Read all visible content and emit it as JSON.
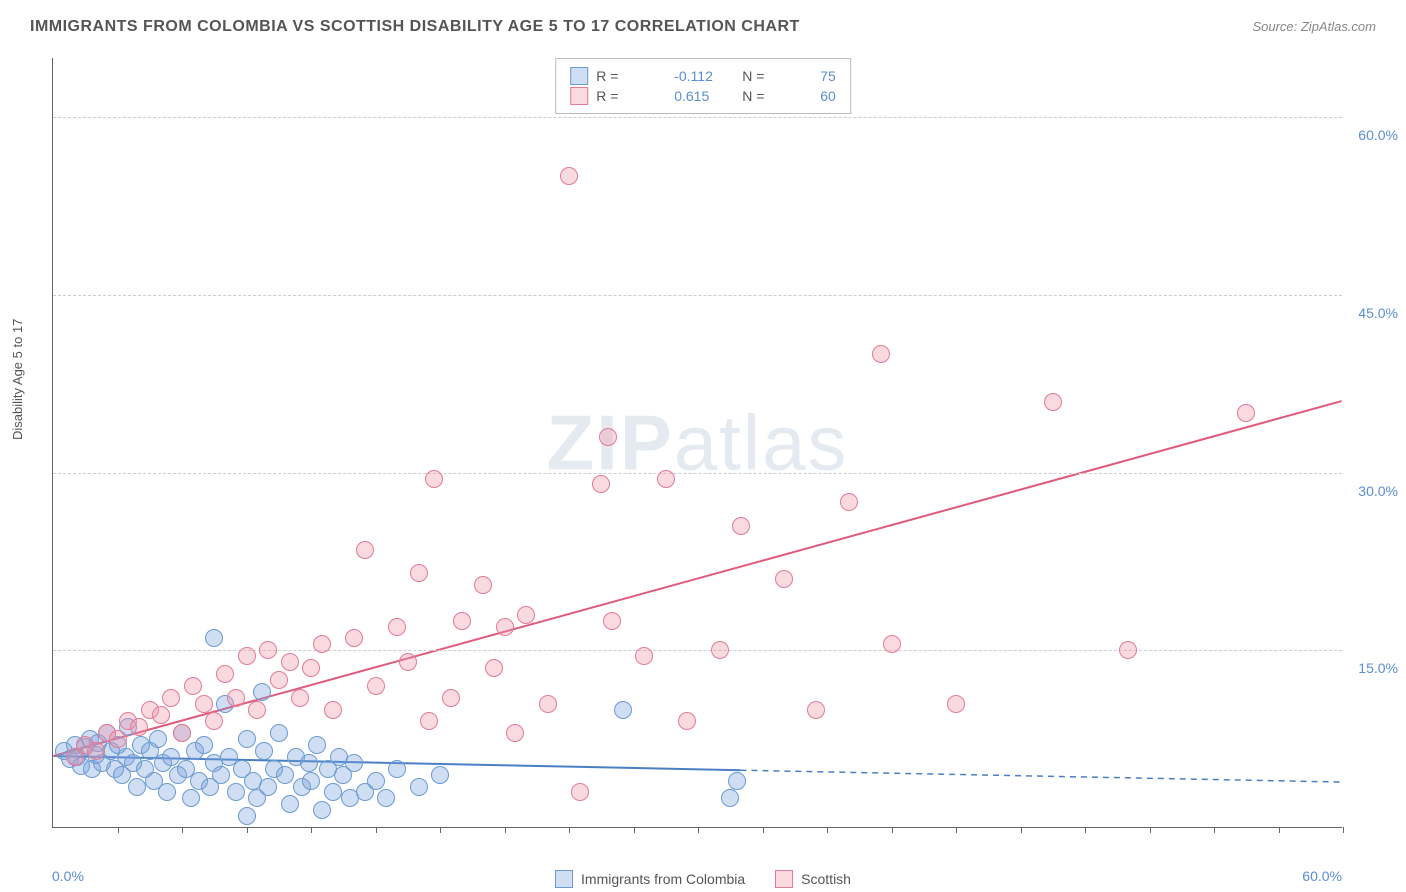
{
  "title": "IMMIGRANTS FROM COLOMBIA VS SCOTTISH DISABILITY AGE 5 TO 17 CORRELATION CHART",
  "source_label": "Source: ",
  "source_value": "ZipAtlas.com",
  "watermark": "ZIPatlas",
  "ylabel": "Disability Age 5 to 17",
  "chart": {
    "type": "scatter",
    "xlim": [
      0,
      60
    ],
    "ylim": [
      0,
      65
    ],
    "x_tick_label_left": "0.0%",
    "x_tick_label_right": "60.0%",
    "y_ticks": [
      15,
      30,
      45,
      60
    ],
    "y_tick_labels": [
      "15.0%",
      "30.0%",
      "45.0%",
      "60.0%"
    ],
    "x_minor_ticks": [
      3,
      6,
      9,
      12,
      15,
      18,
      21,
      24,
      27,
      30,
      33,
      36,
      39,
      42,
      45,
      48,
      51,
      54,
      57,
      60
    ],
    "background_color": "#ffffff",
    "grid_color": "#cccccc",
    "marker_radius": 9,
    "marker_stroke_width": 1.5,
    "series": [
      {
        "name": "Immigrants from Colombia",
        "fill": "rgba(120,160,220,0.35)",
        "stroke": "#6b9bd1",
        "r_label": "R =",
        "r_value": "-0.112",
        "n_label": "N =",
        "n_value": "75",
        "trend": {
          "x1": 0,
          "y1": 6.0,
          "x2": 32,
          "y2": 4.8,
          "dash_x2": 60,
          "dash_y2": 3.8,
          "color": "#4a7fc4",
          "width": 2
        },
        "points": [
          [
            0.5,
            6.5
          ],
          [
            0.8,
            5.8
          ],
          [
            1.0,
            7.0
          ],
          [
            1.1,
            6.0
          ],
          [
            1.3,
            5.2
          ],
          [
            1.5,
            6.8
          ],
          [
            1.7,
            7.5
          ],
          [
            1.8,
            5.0
          ],
          [
            2.0,
            6.2
          ],
          [
            2.1,
            7.2
          ],
          [
            2.3,
            5.5
          ],
          [
            2.5,
            8.0
          ],
          [
            2.7,
            6.5
          ],
          [
            2.9,
            5.0
          ],
          [
            3.0,
            7.0
          ],
          [
            3.2,
            4.5
          ],
          [
            3.4,
            6.0
          ],
          [
            3.5,
            8.5
          ],
          [
            3.7,
            5.5
          ],
          [
            3.9,
            3.5
          ],
          [
            4.1,
            7.0
          ],
          [
            4.3,
            5.0
          ],
          [
            4.5,
            6.5
          ],
          [
            4.7,
            4.0
          ],
          [
            4.9,
            7.5
          ],
          [
            5.1,
            5.5
          ],
          [
            5.3,
            3.0
          ],
          [
            5.5,
            6.0
          ],
          [
            5.8,
            4.5
          ],
          [
            6.0,
            8.0
          ],
          [
            6.2,
            5.0
          ],
          [
            6.4,
            2.5
          ],
          [
            6.6,
            6.5
          ],
          [
            6.8,
            4.0
          ],
          [
            7.0,
            7.0
          ],
          [
            7.3,
            3.5
          ],
          [
            7.5,
            5.5
          ],
          [
            7.8,
            4.5
          ],
          [
            8.0,
            10.5
          ],
          [
            8.2,
            6.0
          ],
          [
            8.5,
            3.0
          ],
          [
            8.8,
            5.0
          ],
          [
            9.0,
            7.5
          ],
          [
            9.3,
            4.0
          ],
          [
            9.5,
            2.5
          ],
          [
            9.7,
            11.5
          ],
          [
            9.8,
            6.5
          ],
          [
            10.0,
            3.5
          ],
          [
            10.3,
            5.0
          ],
          [
            10.5,
            8.0
          ],
          [
            10.8,
            4.5
          ],
          [
            11.0,
            2.0
          ],
          [
            11.3,
            6.0
          ],
          [
            11.6,
            3.5
          ],
          [
            11.9,
            5.5
          ],
          [
            12.0,
            4.0
          ],
          [
            12.3,
            7.0
          ],
          [
            12.5,
            1.5
          ],
          [
            12.8,
            5.0
          ],
          [
            13.0,
            3.0
          ],
          [
            13.3,
            6.0
          ],
          [
            13.5,
            4.5
          ],
          [
            13.8,
            2.5
          ],
          [
            14.0,
            5.5
          ],
          [
            14.5,
            3.0
          ],
          [
            15.0,
            4.0
          ],
          [
            15.5,
            2.5
          ],
          [
            16.0,
            5.0
          ],
          [
            17.0,
            3.5
          ],
          [
            18.0,
            4.5
          ],
          [
            7.5,
            16.0
          ],
          [
            26.5,
            10.0
          ],
          [
            31.8,
            4.0
          ],
          [
            31.5,
            2.5
          ],
          [
            9.0,
            1.0
          ]
        ]
      },
      {
        "name": "Scottish",
        "fill": "rgba(240,150,170,0.35)",
        "stroke": "#e47a94",
        "r_label": "R =",
        "r_value": "0.615",
        "n_label": "N =",
        "n_value": "60",
        "trend": {
          "x1": 0,
          "y1": 6.0,
          "x2": 60,
          "y2": 36.0,
          "color": "#e05a7c",
          "width": 2
        },
        "points": [
          [
            1.0,
            6.0
          ],
          [
            1.5,
            7.0
          ],
          [
            2.0,
            6.5
          ],
          [
            2.5,
            8.0
          ],
          [
            3.0,
            7.5
          ],
          [
            3.5,
            9.0
          ],
          [
            4.0,
            8.5
          ],
          [
            4.5,
            10.0
          ],
          [
            5.0,
            9.5
          ],
          [
            5.5,
            11.0
          ],
          [
            6.0,
            8.0
          ],
          [
            6.5,
            12.0
          ],
          [
            7.0,
            10.5
          ],
          [
            7.5,
            9.0
          ],
          [
            8.0,
            13.0
          ],
          [
            8.5,
            11.0
          ],
          [
            9.0,
            14.5
          ],
          [
            9.5,
            10.0
          ],
          [
            10.0,
            15.0
          ],
          [
            10.5,
            12.5
          ],
          [
            11.0,
            14.0
          ],
          [
            11.5,
            11.0
          ],
          [
            12.0,
            13.5
          ],
          [
            12.5,
            15.5
          ],
          [
            13.0,
            10.0
          ],
          [
            14.0,
            16.0
          ],
          [
            14.5,
            23.5
          ],
          [
            15.0,
            12.0
          ],
          [
            16.0,
            17.0
          ],
          [
            16.5,
            14.0
          ],
          [
            17.0,
            21.5
          ],
          [
            17.5,
            9.0
          ],
          [
            17.7,
            29.5
          ],
          [
            18.5,
            11.0
          ],
          [
            19.0,
            17.5
          ],
          [
            20.0,
            20.5
          ],
          [
            20.5,
            13.5
          ],
          [
            21.0,
            17.0
          ],
          [
            21.5,
            8.0
          ],
          [
            22.0,
            18.0
          ],
          [
            23.0,
            10.5
          ],
          [
            24.0,
            55.0
          ],
          [
            25.5,
            29.0
          ],
          [
            25.8,
            33.0
          ],
          [
            26.0,
            17.5
          ],
          [
            27.5,
            14.5
          ],
          [
            28.5,
            29.5
          ],
          [
            29.5,
            9.0
          ],
          [
            31.0,
            15.0
          ],
          [
            32.0,
            25.5
          ],
          [
            34.0,
            21.0
          ],
          [
            35.5,
            10.0
          ],
          [
            37.0,
            27.5
          ],
          [
            38.5,
            40.0
          ],
          [
            39.0,
            15.5
          ],
          [
            42.0,
            10.5
          ],
          [
            46.5,
            36.0
          ],
          [
            50.0,
            15.0
          ],
          [
            55.5,
            35.0
          ],
          [
            24.5,
            3.0
          ]
        ]
      }
    ]
  }
}
